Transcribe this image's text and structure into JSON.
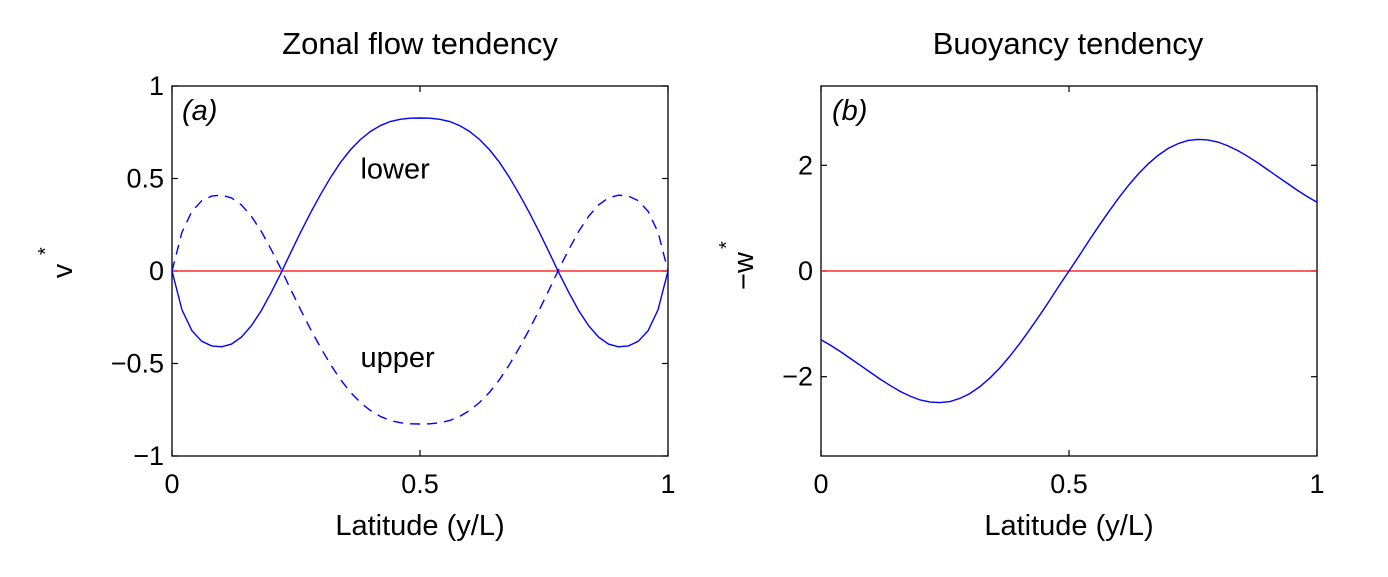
{
  "chart_data": [
    {
      "type": "line",
      "panel_label": "(a)",
      "title": "Zonal flow tendency",
      "xlabel": "Latitude (y/L)",
      "ylabel": "v",
      "ylabel_superscript": "*",
      "xlim": [
        0,
        1
      ],
      "ylim": [
        -1,
        1
      ],
      "xticks": [
        0,
        0.5,
        1
      ],
      "xtick_labels": [
        "0",
        "0.5",
        "1"
      ],
      "yticks": [
        -1,
        -0.5,
        0,
        0.5,
        1
      ],
      "ytick_labels": [
        "−1",
        "−0.5",
        "0",
        "0.5",
        "1"
      ],
      "grid": false,
      "x": [
        0,
        0.02,
        0.04,
        0.06,
        0.08,
        0.1,
        0.12,
        0.14,
        0.16,
        0.18,
        0.2,
        0.22,
        0.24,
        0.26,
        0.28,
        0.3,
        0.32,
        0.34,
        0.36,
        0.38,
        0.4,
        0.42,
        0.44,
        0.46,
        0.48,
        0.5,
        0.52,
        0.54,
        0.56,
        0.58,
        0.6,
        0.62,
        0.64,
        0.66,
        0.68,
        0.7,
        0.72,
        0.74,
        0.76,
        0.78,
        0.8,
        0.82,
        0.84,
        0.86,
        0.88,
        0.9,
        0.92,
        0.94,
        0.96,
        0.98,
        1
      ],
      "series": [
        {
          "name": "lower",
          "style": "solid",
          "color": "#0000ff",
          "values": [
            0,
            -0.209,
            -0.322,
            -0.38,
            -0.405,
            -0.41,
            -0.395,
            -0.357,
            -0.296,
            -0.214,
            -0.116,
            -0.01,
            0.103,
            0.213,
            0.318,
            0.416,
            0.507,
            0.588,
            0.656,
            0.711,
            0.754,
            0.786,
            0.808,
            0.82,
            0.826,
            0.827,
            0.826,
            0.82,
            0.808,
            0.786,
            0.754,
            0.711,
            0.656,
            0.588,
            0.507,
            0.416,
            0.318,
            0.213,
            0.103,
            -0.01,
            -0.116,
            -0.214,
            -0.296,
            -0.357,
            -0.395,
            -0.41,
            -0.405,
            -0.38,
            -0.322,
            -0.209,
            0
          ]
        },
        {
          "name": "upper",
          "style": "dashed",
          "color": "#0000ff",
          "values": [
            0,
            0.209,
            0.322,
            0.38,
            0.405,
            0.41,
            0.395,
            0.357,
            0.296,
            0.214,
            0.116,
            0.01,
            -0.103,
            -0.213,
            -0.318,
            -0.416,
            -0.507,
            -0.588,
            -0.656,
            -0.711,
            -0.754,
            -0.786,
            -0.808,
            -0.82,
            -0.826,
            -0.827,
            -0.826,
            -0.82,
            -0.808,
            -0.786,
            -0.754,
            -0.711,
            -0.656,
            -0.588,
            -0.507,
            -0.416,
            -0.318,
            -0.213,
            -0.103,
            0.01,
            0.116,
            0.214,
            0.296,
            0.357,
            0.395,
            0.41,
            0.405,
            0.38,
            0.322,
            0.209,
            0
          ]
        }
      ],
      "reference_line": {
        "y": 0,
        "color": "#ff0000"
      },
      "annotations": [
        {
          "text": "lower",
          "x": 0.38,
          "y": 0.5
        },
        {
          "text": "upper",
          "x": 0.38,
          "y": -0.52
        }
      ]
    },
    {
      "type": "line",
      "panel_label": "(b)",
      "title": "Buoyancy tendency",
      "xlabel": "Latitude (y/L)",
      "ylabel": "−w",
      "ylabel_superscript": "*",
      "xlim": [
        0,
        1
      ],
      "ylim": [
        -3.5,
        3.5
      ],
      "xticks": [
        0,
        0.5,
        1
      ],
      "xtick_labels": [
        "0",
        "0.5",
        "1"
      ],
      "yticks": [
        -2,
        0,
        2
      ],
      "ytick_labels": [
        "−2",
        "0",
        "2"
      ],
      "grid": false,
      "x": [
        0,
        0.02,
        0.04,
        0.06,
        0.08,
        0.1,
        0.12,
        0.14,
        0.16,
        0.18,
        0.2,
        0.22,
        0.24,
        0.26,
        0.28,
        0.3,
        0.32,
        0.34,
        0.36,
        0.38,
        0.4,
        0.42,
        0.44,
        0.46,
        0.48,
        0.5,
        0.52,
        0.54,
        0.56,
        0.58,
        0.6,
        0.62,
        0.64,
        0.66,
        0.68,
        0.7,
        0.72,
        0.74,
        0.76,
        0.78,
        0.8,
        0.82,
        0.84,
        0.86,
        0.88,
        0.9,
        0.92,
        0.94,
        0.96,
        0.98,
        1
      ],
      "series": [
        {
          "style": "solid",
          "color": "#0000ff",
          "values": [
            -1.3,
            -1.41,
            -1.53,
            -1.66,
            -1.79,
            -1.92,
            -2.05,
            -2.17,
            -2.28,
            -2.37,
            -2.44,
            -2.48,
            -2.49,
            -2.47,
            -2.41,
            -2.32,
            -2.19,
            -2.03,
            -1.84,
            -1.62,
            -1.38,
            -1.12,
            -0.85,
            -0.57,
            -0.28,
            0,
            0.28,
            0.57,
            0.85,
            1.12,
            1.38,
            1.62,
            1.84,
            2.03,
            2.19,
            2.32,
            2.41,
            2.47,
            2.49,
            2.48,
            2.44,
            2.37,
            2.28,
            2.17,
            2.05,
            1.92,
            1.79,
            1.66,
            1.53,
            1.41,
            1.3
          ]
        }
      ],
      "reference_line": {
        "y": 0,
        "color": "#ff0000"
      },
      "annotations": []
    }
  ]
}
